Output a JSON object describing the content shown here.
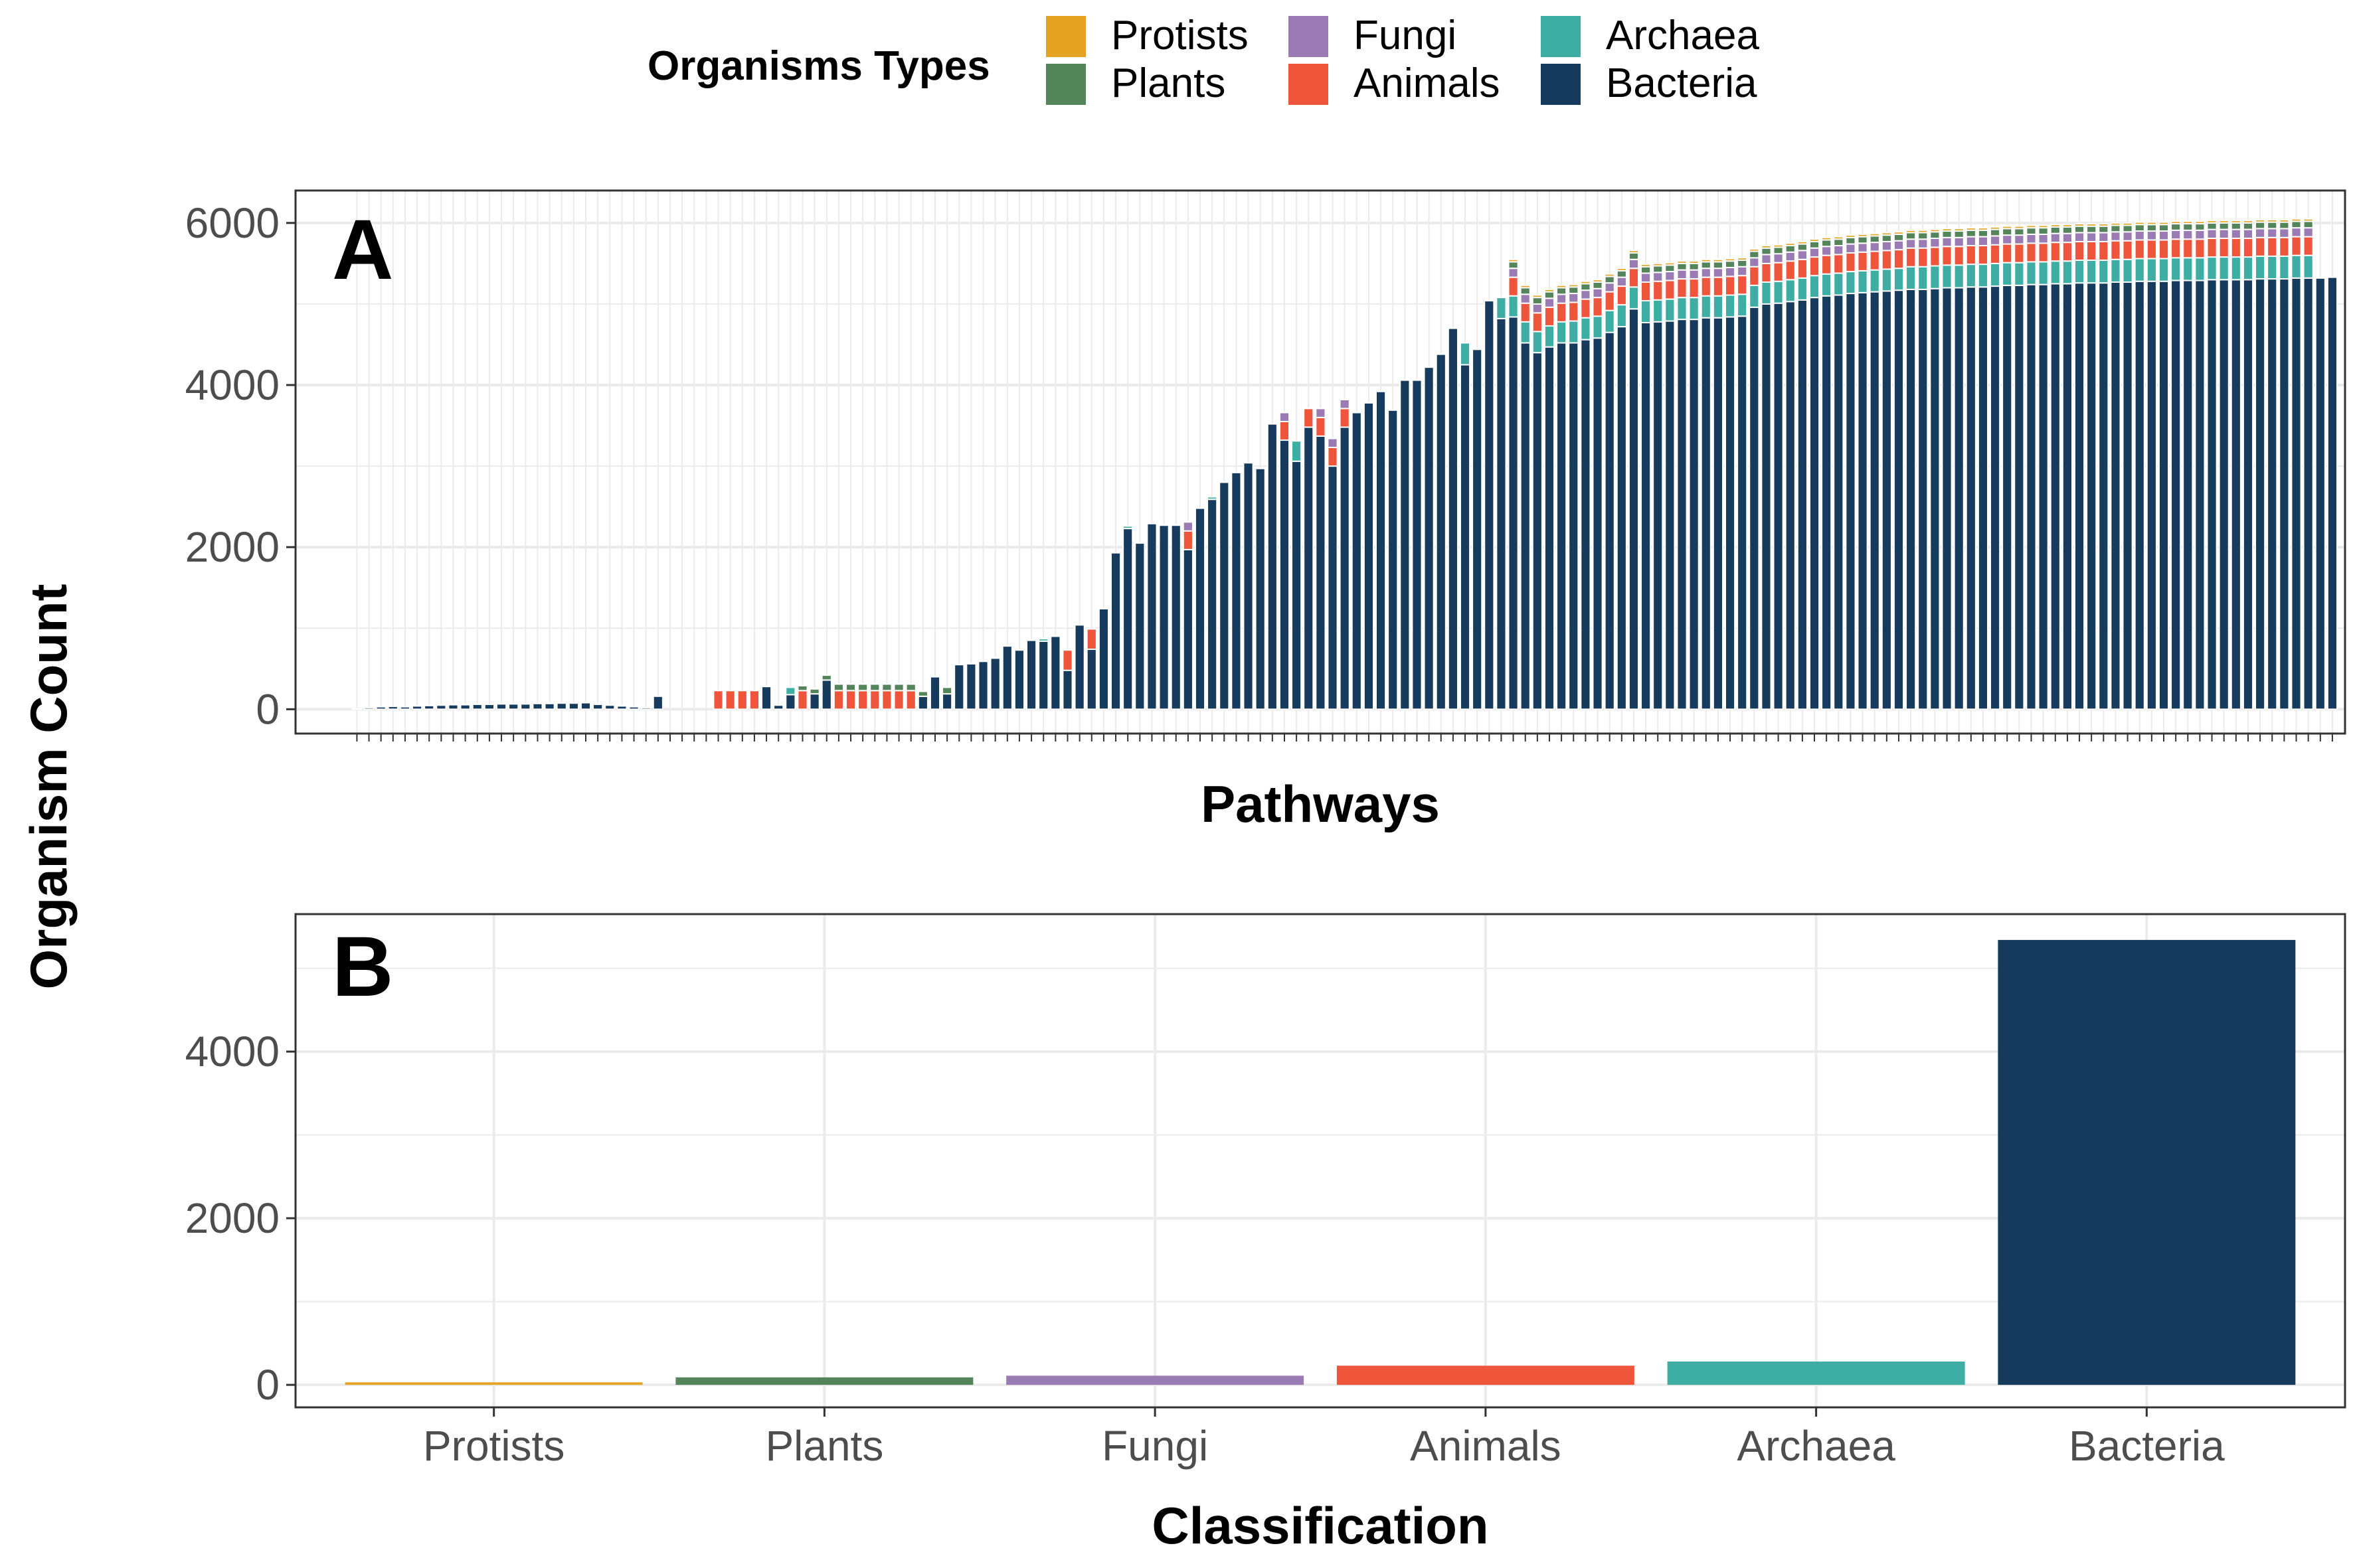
{
  "legend": {
    "title": "Organisms Types",
    "items": [
      {
        "label": "Protists",
        "color": "#E5A323"
      },
      {
        "label": "Plants",
        "color": "#53845A"
      },
      {
        "label": "Fungi",
        "color": "#9B7BB3"
      },
      {
        "label": "Animals",
        "color": "#EE553B"
      },
      {
        "label": "Archaea",
        "color": "#3EAEA4"
      },
      {
        "label": "Bacteria",
        "color": "#173B5C"
      }
    ]
  },
  "shared_ylabel": "Organism Count",
  "chart_data": [
    {
      "panel": "A",
      "type": "bar",
      "stacked": true,
      "xlabel": "Pathways",
      "ylabel": "Organism Count",
      "ylim": [
        -300,
        6400
      ],
      "yticks": [
        0,
        2000,
        4000,
        6000
      ],
      "x_tick_labels_shown": false,
      "grid": true,
      "legend_position": "top",
      "stack_order_bottom_to_top": [
        "Bacteria",
        "Archaea",
        "Animals",
        "Fungi",
        "Plants",
        "Protists"
      ],
      "series": [
        {
          "name": "Bacteria",
          "values": [
            5,
            20,
            30,
            35,
            30,
            40,
            45,
            50,
            55,
            55,
            60,
            60,
            65,
            65,
            65,
            70,
            70,
            75,
            75,
            80,
            60,
            50,
            40,
            30,
            20,
            160,
            0,
            0,
            0,
            0,
            0,
            0,
            0,
            0,
            280,
            50,
            180,
            0,
            190,
            360,
            0,
            0,
            0,
            0,
            0,
            0,
            0,
            160,
            400,
            190,
            550,
            560,
            590,
            630,
            780,
            730,
            850,
            840,
            900,
            480,
            1040,
            740,
            1240,
            1930,
            2230,
            2050,
            2290,
            2270,
            2270,
            1970,
            2480,
            2590,
            2800,
            2920,
            3040,
            2970,
            3520,
            3320,
            3060,
            3480,
            3370,
            3000,
            3480,
            3660,
            3780,
            3920,
            3690,
            4060,
            4060,
            4220,
            4380,
            4700,
            4250,
            4440,
            5040,
            4820,
            4840,
            4520,
            4400,
            4470,
            4520,
            4520,
            4560,
            4580,
            4650,
            4720,
            4940,
            4770,
            4780,
            4790,
            4810,
            4810,
            4830,
            4830,
            4840,
            4850,
            4960,
            5000,
            5010,
            5030,
            5050,
            5080,
            5100,
            5110,
            5130,
            5140,
            5150,
            5160,
            5170,
            5180,
            5180,
            5190,
            5200,
            5200,
            5210,
            5210,
            5220,
            5230,
            5230,
            5240,
            5240,
            5250,
            5250,
            5260,
            5260,
            5260,
            5270,
            5270,
            5280,
            5280,
            5280,
            5290,
            5290,
            5290,
            5300,
            5300,
            5300,
            5300,
            5310,
            5310,
            5310,
            5320,
            5320,
            5320,
            5330
          ]
        },
        {
          "name": "Archaea",
          "values": [
            0,
            0,
            0,
            0,
            0,
            0,
            0,
            0,
            0,
            0,
            0,
            0,
            0,
            0,
            0,
            0,
            0,
            0,
            0,
            0,
            0,
            0,
            0,
            0,
            0,
            0,
            0,
            0,
            0,
            0,
            0,
            0,
            0,
            0,
            0,
            0,
            90,
            0,
            0,
            0,
            0,
            0,
            0,
            0,
            0,
            0,
            0,
            0,
            0,
            0,
            0,
            0,
            0,
            0,
            0,
            0,
            0,
            30,
            0,
            0,
            0,
            0,
            0,
            0,
            30,
            0,
            0,
            0,
            0,
            0,
            0,
            30,
            0,
            0,
            0,
            0,
            0,
            0,
            250,
            0,
            0,
            0,
            0,
            0,
            0,
            0,
            0,
            0,
            0,
            0,
            0,
            0,
            270,
            0,
            0,
            260,
            260,
            260,
            260,
            260,
            260,
            270,
            270,
            270,
            270,
            270,
            270,
            270,
            270,
            270,
            270,
            270,
            270,
            270,
            270,
            270,
            270,
            270,
            270,
            270,
            270,
            270,
            270,
            270,
            270,
            270,
            270,
            270,
            270,
            280,
            280,
            280,
            280,
            280,
            280,
            280,
            280,
            280,
            280,
            280,
            280,
            280,
            280,
            280,
            280,
            280,
            280,
            280,
            280,
            280,
            280,
            280,
            280,
            280,
            280,
            280,
            280,
            280,
            280,
            280,
            280,
            280,
            280
          ]
        },
        {
          "name": "Animals",
          "values": [
            0,
            0,
            0,
            0,
            0,
            0,
            0,
            0,
            0,
            0,
            0,
            0,
            0,
            0,
            0,
            0,
            0,
            0,
            0,
            0,
            0,
            0,
            0,
            0,
            0,
            0,
            0,
            0,
            0,
            0,
            230,
            230,
            230,
            230,
            0,
            0,
            0,
            230,
            0,
            0,
            230,
            230,
            230,
            230,
            230,
            230,
            230,
            0,
            0,
            0,
            0,
            0,
            0,
            0,
            0,
            0,
            0,
            0,
            0,
            250,
            0,
            250,
            0,
            0,
            0,
            0,
            0,
            0,
            0,
            230,
            0,
            0,
            0,
            0,
            0,
            0,
            0,
            230,
            0,
            230,
            230,
            230,
            230,
            0,
            0,
            0,
            0,
            0,
            0,
            0,
            0,
            0,
            0,
            0,
            0,
            0,
            230,
            230,
            230,
            230,
            230,
            230,
            230,
            230,
            230,
            230,
            230,
            230,
            230,
            230,
            230,
            230,
            230,
            230,
            230,
            230,
            230,
            230,
            230,
            230,
            230,
            230,
            230,
            230,
            230,
            230,
            230,
            230,
            230,
            230,
            230,
            230,
            230,
            230,
            230,
            230,
            230,
            230,
            230,
            230,
            230,
            230,
            230,
            230,
            230,
            230,
            230,
            230,
            230,
            230,
            230,
            230,
            230,
            230,
            230,
            230,
            230,
            230,
            230,
            230,
            230,
            230,
            230
          ]
        },
        {
          "name": "Fungi",
          "values": [
            0,
            0,
            0,
            0,
            0,
            0,
            0,
            0,
            0,
            0,
            0,
            0,
            0,
            0,
            0,
            0,
            0,
            0,
            0,
            0,
            0,
            0,
            0,
            0,
            0,
            0,
            0,
            0,
            0,
            0,
            0,
            0,
            0,
            0,
            0,
            0,
            0,
            0,
            0,
            0,
            0,
            0,
            0,
            0,
            0,
            0,
            0,
            0,
            0,
            0,
            0,
            0,
            0,
            0,
            0,
            0,
            0,
            0,
            0,
            0,
            0,
            0,
            0,
            0,
            0,
            0,
            0,
            0,
            0,
            110,
            0,
            0,
            0,
            0,
            0,
            0,
            0,
            110,
            0,
            0,
            110,
            110,
            110,
            0,
            0,
            0,
            0,
            0,
            0,
            0,
            0,
            0,
            0,
            0,
            0,
            0,
            110,
            110,
            110,
            110,
            110,
            110,
            110,
            110,
            110,
            110,
            110,
            110,
            110,
            110,
            110,
            110,
            110,
            110,
            110,
            110,
            110,
            110,
            110,
            110,
            110,
            110,
            110,
            110,
            110,
            110,
            110,
            110,
            110,
            110,
            110,
            110,
            110,
            110,
            110,
            110,
            110,
            110,
            110,
            110,
            110,
            110,
            110,
            110,
            110,
            110,
            110,
            110,
            110,
            110,
            110,
            110,
            110,
            110,
            110,
            110,
            110,
            110,
            110,
            110,
            110,
            110,
            110
          ]
        },
        {
          "name": "Plants",
          "values": [
            0,
            0,
            0,
            0,
            0,
            0,
            0,
            0,
            0,
            0,
            0,
            0,
            0,
            0,
            0,
            0,
            0,
            0,
            0,
            0,
            0,
            0,
            0,
            0,
            0,
            0,
            0,
            0,
            0,
            0,
            0,
            0,
            0,
            0,
            0,
            0,
            0,
            60,
            60,
            60,
            80,
            80,
            80,
            80,
            80,
            80,
            80,
            60,
            0,
            80,
            0,
            0,
            0,
            0,
            0,
            0,
            0,
            0,
            0,
            0,
            0,
            0,
            0,
            0,
            0,
            0,
            0,
            0,
            0,
            0,
            0,
            0,
            0,
            0,
            0,
            0,
            0,
            0,
            0,
            0,
            0,
            0,
            0,
            0,
            0,
            0,
            0,
            0,
            0,
            0,
            0,
            0,
            0,
            0,
            0,
            0,
            80,
            80,
            80,
            80,
            80,
            80,
            80,
            80,
            80,
            80,
            80,
            80,
            80,
            80,
            80,
            80,
            80,
            80,
            80,
            80,
            80,
            80,
            80,
            80,
            80,
            80,
            80,
            80,
            80,
            80,
            80,
            80,
            80,
            80,
            80,
            80,
            80,
            80,
            80,
            80,
            80,
            80,
            80,
            80,
            80,
            80,
            80,
            80,
            80,
            80,
            80,
            80,
            80,
            80,
            80,
            80,
            80,
            80,
            80,
            80,
            80,
            80,
            80,
            80,
            80,
            80,
            80
          ]
        },
        {
          "name": "Protists",
          "values": [
            0,
            0,
            0,
            0,
            0,
            0,
            0,
            0,
            0,
            0,
            0,
            0,
            0,
            0,
            0,
            0,
            0,
            0,
            0,
            0,
            0,
            0,
            0,
            0,
            0,
            0,
            0,
            0,
            0,
            0,
            0,
            0,
            0,
            0,
            0,
            0,
            0,
            0,
            0,
            0,
            0,
            0,
            0,
            0,
            0,
            0,
            0,
            0,
            0,
            0,
            0,
            0,
            0,
            0,
            0,
            0,
            0,
            0,
            0,
            0,
            0,
            0,
            0,
            0,
            0,
            0,
            0,
            0,
            0,
            0,
            0,
            0,
            0,
            0,
            0,
            0,
            0,
            0,
            0,
            0,
            0,
            0,
            0,
            0,
            0,
            0,
            0,
            0,
            0,
            0,
            0,
            0,
            0,
            0,
            0,
            0,
            30,
            30,
            30,
            30,
            30,
            30,
            30,
            30,
            30,
            30,
            30,
            30,
            30,
            30,
            30,
            30,
            30,
            30,
            30,
            30,
            30,
            30,
            30,
            30,
            30,
            30,
            30,
            30,
            30,
            30,
            30,
            30,
            30,
            30,
            30,
            30,
            30,
            30,
            30,
            30,
            30,
            30,
            30,
            30,
            30,
            30,
            30,
            30,
            30,
            30,
            30,
            30,
            30,
            30,
            30,
            30,
            30,
            30,
            30,
            30,
            30,
            30,
            30,
            30,
            30,
            30,
            30
          ]
        }
      ]
    },
    {
      "panel": "B",
      "type": "bar",
      "xlabel": "Classification",
      "ylabel": "Organism Count",
      "ylim": [
        -270,
        5650
      ],
      "yticks": [
        0,
        2000,
        4000
      ],
      "grid": true,
      "categories": [
        "Protists",
        "Plants",
        "Fungi",
        "Animals",
        "Archaea",
        "Bacteria"
      ],
      "values": [
        30,
        90,
        110,
        230,
        280,
        5340
      ],
      "colors": [
        "#E5A323",
        "#53845A",
        "#9B7BB3",
        "#EE553B",
        "#3EAEA4",
        "#173B5C"
      ]
    }
  ]
}
